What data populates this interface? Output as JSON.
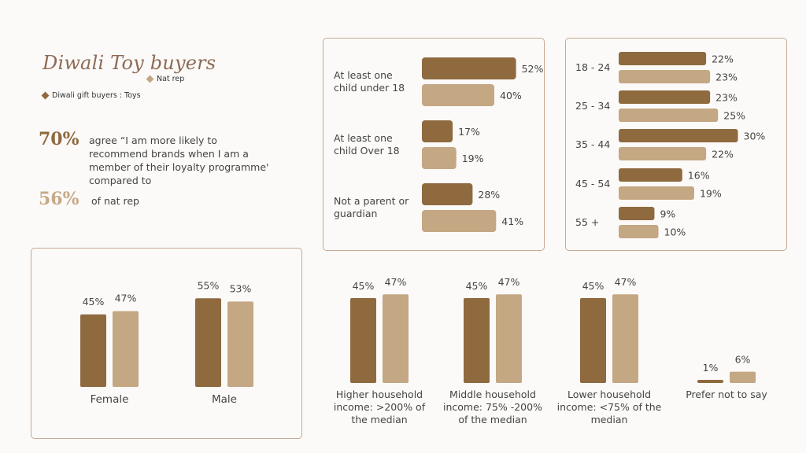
{
  "title": "Diwali Toy buyers",
  "legend": {
    "nat_rep": "Nat rep",
    "diwali": "Diwali gift buyers : Toys"
  },
  "colors": {
    "diwali": "#8f6a3f",
    "nat_rep": "#c4a783",
    "border": "#c9a890",
    "title": "#8e6a55"
  },
  "stats": {
    "stat1_value": "70%",
    "stat1_text": "agree “I am more likely to recommend brands when I am a member of their loyalty programme' compared to",
    "stat2_value": "56%",
    "stat2_text": "of nat rep"
  },
  "chart_data": [
    {
      "type": "bar",
      "orientation": "horizontal",
      "categories": [
        [
          "At least one",
          "child under 18"
        ],
        [
          "At least one",
          "child Over 18"
        ],
        [
          "Not a parent or",
          "guardian"
        ]
      ],
      "series": [
        {
          "name": "Diwali gift buyers : Toys",
          "values": [
            52,
            17,
            28
          ]
        },
        {
          "name": "Nat rep",
          "values": [
            40,
            19,
            41
          ]
        }
      ]
    },
    {
      "type": "bar",
      "orientation": "horizontal",
      "categories": [
        [
          "18 - 24"
        ],
        [
          "25 - 34"
        ],
        [
          "35 - 44"
        ],
        [
          "45 - 54"
        ],
        [
          "55 +"
        ]
      ],
      "series": [
        {
          "name": "Diwali gift buyers : Toys",
          "values": [
            22,
            23,
            30,
            16,
            9
          ]
        },
        {
          "name": "Nat rep",
          "values": [
            23,
            25,
            22,
            19,
            10
          ]
        }
      ]
    },
    {
      "type": "bar",
      "orientation": "vertical",
      "categories": [
        [
          "Female"
        ],
        [
          "Male"
        ]
      ],
      "series": [
        {
          "name": "Diwali gift buyers : Toys",
          "values": [
            45,
            55
          ]
        },
        {
          "name": "Nat rep",
          "values": [
            47,
            53
          ]
        }
      ]
    },
    {
      "type": "bar",
      "orientation": "vertical",
      "categories": [
        [
          "Higher household",
          "income: >200% of",
          "the median"
        ],
        [
          "Middle household",
          "income: 75% -200%",
          "of the median"
        ],
        [
          "Lower household",
          "income: <75% of the",
          "median"
        ],
        [
          "Prefer not to say"
        ]
      ],
      "series": [
        {
          "name": "Diwali gift buyers : Toys",
          "values": [
            45,
            45,
            45,
            1
          ]
        },
        {
          "name": "Nat rep",
          "values": [
            47,
            47,
            47,
            6
          ]
        }
      ]
    }
  ]
}
